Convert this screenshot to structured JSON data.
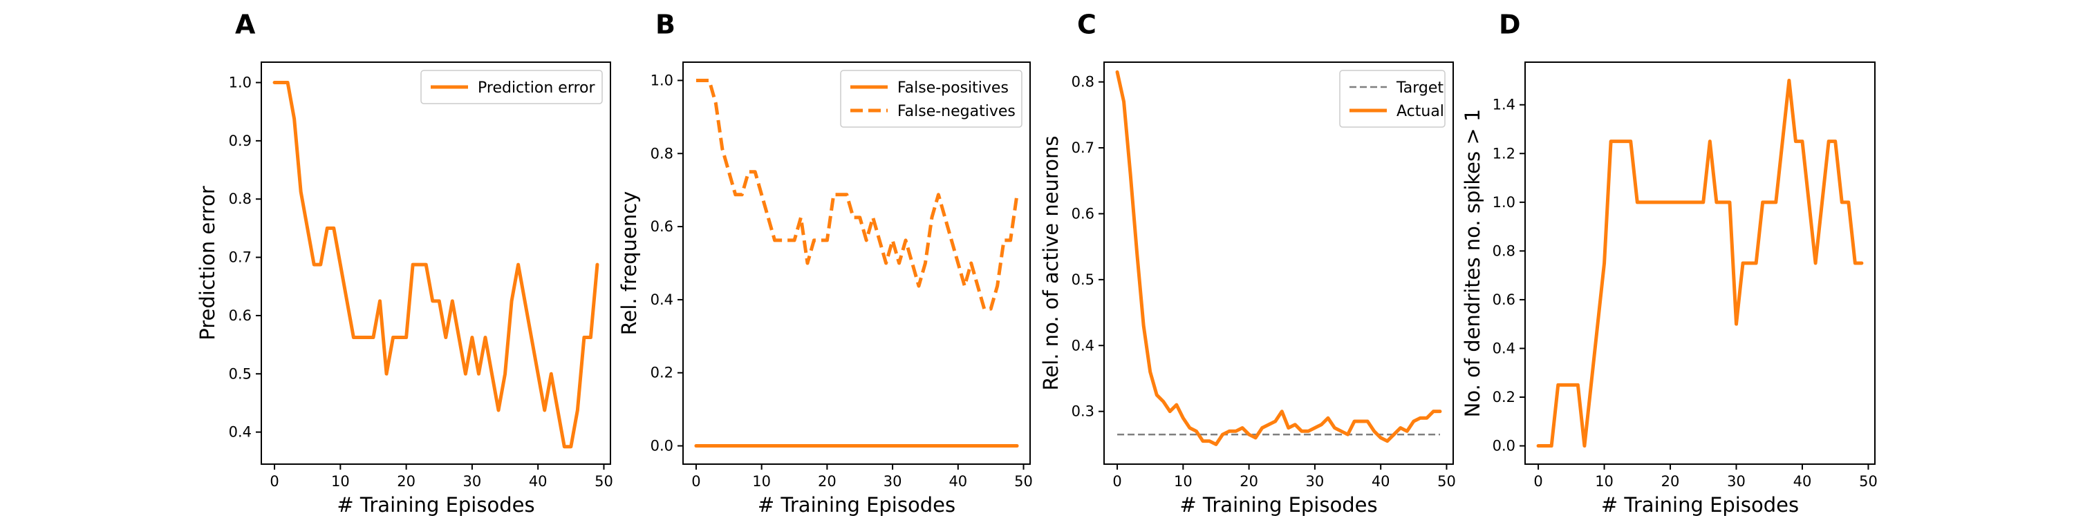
{
  "figure": {
    "background": "#ffffff",
    "accent": "#ff7f0e",
    "target_color": "#7f7f7f"
  },
  "chart_data": [
    {
      "panel": "A",
      "type": "line",
      "xlabel": "# Training Episodes",
      "ylabel": "Prediction error",
      "xlim": [
        -2,
        51
      ],
      "ylim": [
        0.345,
        1.035
      ],
      "xticks": [
        0,
        10,
        20,
        30,
        40,
        50
      ],
      "yticks": [
        0.4,
        0.5,
        0.6,
        0.7,
        0.8,
        0.9,
        1.0
      ],
      "ytick_labels": [
        "0.4",
        "0.5",
        "0.6",
        "0.7",
        "0.8",
        "0.9",
        "1.0"
      ],
      "legend": "top-right",
      "grid": false,
      "series": [
        {
          "name": "Prediction error",
          "style": "solid",
          "x": [
            0,
            1,
            2,
            3,
            4,
            5,
            6,
            7,
            8,
            9,
            10,
            11,
            12,
            13,
            14,
            15,
            16,
            17,
            18,
            19,
            20,
            21,
            22,
            23,
            24,
            25,
            26,
            27,
            28,
            29,
            30,
            31,
            32,
            33,
            34,
            35,
            36,
            37,
            38,
            39,
            40,
            41,
            42,
            43,
            44,
            45,
            46,
            47,
            48,
            49
          ],
          "values": [
            1.0,
            1.0,
            1.0,
            0.9375,
            0.8125,
            0.75,
            0.6875,
            0.6875,
            0.75,
            0.75,
            0.6875,
            0.625,
            0.5625,
            0.5625,
            0.5625,
            0.5625,
            0.625,
            0.5,
            0.5625,
            0.5625,
            0.5625,
            0.6875,
            0.6875,
            0.6875,
            0.625,
            0.625,
            0.5625,
            0.625,
            0.5625,
            0.5,
            0.5625,
            0.5,
            0.5625,
            0.5,
            0.4375,
            0.5,
            0.625,
            0.6875,
            0.625,
            0.5625,
            0.5,
            0.4375,
            0.5,
            0.4375,
            0.375,
            0.375,
            0.4375,
            0.5625,
            0.5625,
            0.6875
          ]
        }
      ]
    },
    {
      "panel": "B",
      "type": "line",
      "xlabel": "# Training Episodes",
      "ylabel": "Rel. frequency",
      "xlim": [
        -2,
        51
      ],
      "ylim": [
        -0.05,
        1.05
      ],
      "xticks": [
        0,
        10,
        20,
        30,
        40,
        50
      ],
      "yticks": [
        0.0,
        0.2,
        0.4,
        0.6,
        0.8,
        1.0
      ],
      "ytick_labels": [
        "0.0",
        "0.2",
        "0.4",
        "0.6",
        "0.8",
        "1.0"
      ],
      "legend": "top-right",
      "grid": false,
      "series": [
        {
          "name": "False-positives",
          "style": "solid",
          "x": [
            0,
            49
          ],
          "values": [
            0.0,
            0.0
          ]
        },
        {
          "name": "False-negatives",
          "style": "dashed",
          "x": [
            0,
            1,
            2,
            3,
            4,
            5,
            6,
            7,
            8,
            9,
            10,
            11,
            12,
            13,
            14,
            15,
            16,
            17,
            18,
            19,
            20,
            21,
            22,
            23,
            24,
            25,
            26,
            27,
            28,
            29,
            30,
            31,
            32,
            33,
            34,
            35,
            36,
            37,
            38,
            39,
            40,
            41,
            42,
            43,
            44,
            45,
            46,
            47,
            48,
            49
          ],
          "values": [
            1.0,
            1.0,
            1.0,
            0.9375,
            0.8125,
            0.75,
            0.6875,
            0.6875,
            0.75,
            0.75,
            0.6875,
            0.625,
            0.5625,
            0.5625,
            0.5625,
            0.5625,
            0.625,
            0.5,
            0.5625,
            0.5625,
            0.5625,
            0.6875,
            0.6875,
            0.6875,
            0.625,
            0.625,
            0.5625,
            0.625,
            0.5625,
            0.5,
            0.5625,
            0.5,
            0.5625,
            0.5,
            0.4375,
            0.5,
            0.625,
            0.6875,
            0.625,
            0.5625,
            0.5,
            0.4375,
            0.5,
            0.4375,
            0.375,
            0.375,
            0.4375,
            0.5625,
            0.5625,
            0.6875
          ]
        }
      ]
    },
    {
      "panel": "C",
      "type": "line",
      "xlabel": "# Training Episodes",
      "ylabel": "Rel. no. of active neurons",
      "xlim": [
        -2,
        51
      ],
      "ylim": [
        0.22,
        0.83
      ],
      "xticks": [
        0,
        10,
        20,
        30,
        40,
        50
      ],
      "yticks": [
        0.3,
        0.4,
        0.5,
        0.6,
        0.7,
        0.8
      ],
      "ytick_labels": [
        "0.3",
        "0.4",
        "0.5",
        "0.6",
        "0.7",
        "0.8"
      ],
      "legend": "top-right",
      "grid": false,
      "series": [
        {
          "name": "Target",
          "style": "dashed-thin",
          "x": [
            0,
            49
          ],
          "values": [
            0.265,
            0.265
          ]
        },
        {
          "name": "Actual",
          "style": "solid",
          "x": [
            0,
            1,
            2,
            3,
            4,
            5,
            6,
            7,
            8,
            9,
            10,
            11,
            12,
            13,
            14,
            15,
            16,
            17,
            18,
            19,
            20,
            21,
            22,
            23,
            24,
            25,
            26,
            27,
            28,
            29,
            30,
            31,
            32,
            33,
            34,
            35,
            36,
            37,
            38,
            39,
            40,
            41,
            42,
            43,
            44,
            45,
            46,
            47,
            48,
            49
          ],
          "values": [
            0.815,
            0.77,
            0.66,
            0.54,
            0.43,
            0.36,
            0.325,
            0.315,
            0.3,
            0.31,
            0.29,
            0.275,
            0.27,
            0.255,
            0.255,
            0.25,
            0.265,
            0.27,
            0.27,
            0.275,
            0.265,
            0.26,
            0.275,
            0.28,
            0.285,
            0.3,
            0.275,
            0.28,
            0.27,
            0.27,
            0.275,
            0.28,
            0.29,
            0.275,
            0.27,
            0.265,
            0.285,
            0.285,
            0.285,
            0.27,
            0.26,
            0.255,
            0.265,
            0.275,
            0.27,
            0.285,
            0.29,
            0.29,
            0.3,
            0.3
          ]
        }
      ]
    },
    {
      "panel": "D",
      "type": "line",
      "xlabel": "# Training Episodes",
      "ylabel": "No. of dendrites no. spikes > 1",
      "xlim": [
        -2,
        51
      ],
      "ylim": [
        -0.075,
        1.575
      ],
      "xticks": [
        0,
        10,
        20,
        30,
        40,
        50
      ],
      "yticks": [
        0.0,
        0.2,
        0.4,
        0.6,
        0.8,
        1.0,
        1.2,
        1.4
      ],
      "ytick_labels": [
        "0.0",
        "0.2",
        "0.4",
        "0.6",
        "0.8",
        "1.0",
        "1.2",
        "1.4"
      ],
      "legend": "none",
      "grid": false,
      "series": [
        {
          "style": "solid",
          "x": [
            0,
            1,
            2,
            3,
            4,
            5,
            6,
            7,
            8,
            9,
            10,
            11,
            12,
            13,
            14,
            15,
            16,
            17,
            18,
            19,
            20,
            21,
            22,
            23,
            24,
            25,
            26,
            27,
            28,
            29,
            30,
            31,
            32,
            33,
            34,
            35,
            36,
            37,
            38,
            39,
            40,
            41,
            42,
            43,
            44,
            45,
            46,
            47,
            48,
            49
          ],
          "values": [
            0.0,
            0.0,
            0.0,
            0.25,
            0.25,
            0.25,
            0.25,
            0.0,
            0.25,
            0.5,
            0.75,
            1.25,
            1.25,
            1.25,
            1.25,
            1.0,
            1.0,
            1.0,
            1.0,
            1.0,
            1.0,
            1.0,
            1.0,
            1.0,
            1.0,
            1.0,
            1.25,
            1.0,
            1.0,
            1.0,
            0.5,
            0.75,
            0.75,
            0.75,
            1.0,
            1.0,
            1.0,
            1.25,
            1.5,
            1.25,
            1.25,
            1.0,
            0.75,
            1.0,
            1.25,
            1.25,
            1.0,
            1.0,
            0.75,
            0.75
          ]
        }
      ]
    }
  ]
}
